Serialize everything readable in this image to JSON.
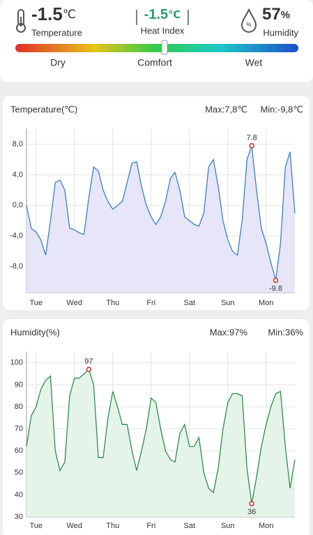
{
  "header": {
    "temperature": {
      "value": "-1.5",
      "unit": "℃",
      "label": "Temperature"
    },
    "heat_index": {
      "value": "-1.5",
      "unit": "℃",
      "label": "Heat Index"
    },
    "humidity": {
      "value": "57",
      "unit": "%",
      "label": "Humidity"
    },
    "comfort_scale": [
      "Dry",
      "Comfort",
      "Wet"
    ]
  },
  "chart_data": [
    {
      "type": "line",
      "title": "Temperature(℃)",
      "max_label": "Max:7,8℃",
      "min_label": "Min:-9,8℃",
      "color": "#3b7fc0",
      "fill": "#e6e6f8",
      "x": [
        0,
        3,
        6,
        9,
        12,
        15,
        18,
        21,
        24,
        27,
        30,
        33,
        36,
        39,
        42,
        45,
        48,
        51,
        54,
        57,
        60,
        63,
        66,
        69,
        72,
        75,
        78,
        81,
        84,
        87,
        90,
        93,
        96,
        99,
        102,
        105,
        108,
        111,
        114,
        117,
        120,
        123,
        126,
        129,
        132,
        135,
        138,
        141,
        144,
        147,
        150,
        153,
        156,
        159,
        162,
        165,
        168
      ],
      "values": [
        0,
        -3,
        -3.5,
        -4.5,
        -6.5,
        -2,
        3,
        3.3,
        2,
        -3,
        -3.2,
        -3.6,
        -3.8,
        1,
        5,
        4.5,
        2,
        0.5,
        -0.5,
        0,
        0.5,
        3,
        5.5,
        5.7,
        2.5,
        0,
        -1.5,
        -2.5,
        -1.5,
        0.5,
        3.5,
        4.3,
        2,
        -1.5,
        -2,
        -2.5,
        -2.7,
        -1,
        5,
        6,
        2.5,
        -2,
        -4.5,
        -6,
        -6.5,
        -2,
        6,
        7.8,
        2,
        -3,
        -5,
        -7.5,
        -9.8,
        -5,
        5,
        7,
        -1
      ],
      "max_point": {
        "x": 141,
        "y": 7.8,
        "label": "7.8"
      },
      "min_point": {
        "x": 156,
        "y": -9.8,
        "label": "-9.8"
      },
      "xlim": [
        0,
        168
      ],
      "xticks": [
        {
          "value": 6,
          "label": "Tue"
        },
        {
          "value": 30,
          "label": "Wed"
        },
        {
          "value": 54,
          "label": "Thu"
        },
        {
          "value": 78,
          "label": "Fri"
        },
        {
          "value": 102,
          "label": "Sat"
        },
        {
          "value": 126,
          "label": "Sun"
        },
        {
          "value": 150,
          "label": "Mon"
        }
      ],
      "ylim": [
        -11.4,
        10
      ],
      "yticks": [
        {
          "value": 8,
          "label": "8,0"
        },
        {
          "value": 4,
          "label": "4,0"
        },
        {
          "value": 0,
          "label": "0,0"
        },
        {
          "value": -4,
          "label": "-4,0"
        },
        {
          "value": -8,
          "label": "-8,0"
        }
      ],
      "grid": true
    },
    {
      "type": "line",
      "title": "Humidity(%)",
      "max_label": "Max:97%",
      "min_label": "Min:36%",
      "color": "#2e8b4f",
      "fill": "#e4f4e8",
      "x": [
        0,
        3,
        6,
        9,
        12,
        15,
        18,
        21,
        24,
        27,
        30,
        33,
        36,
        39,
        42,
        45,
        48,
        51,
        54,
        57,
        60,
        63,
        66,
        69,
        72,
        75,
        78,
        81,
        84,
        87,
        90,
        93,
        96,
        99,
        102,
        105,
        108,
        111,
        114,
        117,
        120,
        123,
        126,
        129,
        132,
        135,
        138,
        141,
        144,
        147,
        150,
        153,
        156,
        159,
        162,
        165,
        168
      ],
      "values": [
        62,
        76,
        80,
        88,
        92,
        94,
        60,
        51,
        55,
        85,
        93,
        93,
        95,
        97,
        90,
        57,
        57,
        75,
        87,
        80,
        72,
        72,
        60,
        51,
        60,
        70,
        84,
        82,
        70,
        60,
        56,
        55,
        68,
        72,
        62,
        62,
        66,
        50,
        43,
        41,
        52,
        70,
        82,
        86,
        86,
        85,
        52,
        36,
        48,
        62,
        72,
        80,
        86,
        87,
        62,
        43,
        56
      ],
      "max_point": {
        "x": 39,
        "y": 97,
        "label": "97"
      },
      "min_point": {
        "x": 141,
        "y": 36,
        "label": "36"
      },
      "xlim": [
        0,
        168
      ],
      "xticks": [
        {
          "value": 6,
          "label": "Tue"
        },
        {
          "value": 30,
          "label": "Wed"
        },
        {
          "value": 54,
          "label": "Thu"
        },
        {
          "value": 78,
          "label": "Fri"
        },
        {
          "value": 102,
          "label": "Sat"
        },
        {
          "value": 126,
          "label": "Sun"
        },
        {
          "value": 150,
          "label": "Mon"
        }
      ],
      "ylim": [
        30,
        105
      ],
      "yticks": [
        100,
        90,
        80,
        70,
        60,
        50,
        40,
        30
      ],
      "grid": true
    }
  ]
}
